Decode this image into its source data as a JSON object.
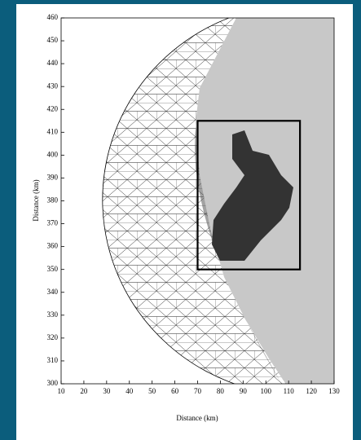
{
  "chart_data": {
    "type": "mesh",
    "xlabel": "Distance (km)",
    "ylabel": "Distance (km)",
    "xlim": [
      10,
      130
    ],
    "ylim": [
      300,
      460
    ],
    "xticks": [
      10,
      20,
      30,
      40,
      50,
      60,
      70,
      80,
      90,
      100,
      110,
      120,
      130
    ],
    "yticks": [
      300,
      310,
      320,
      330,
      340,
      350,
      360,
      370,
      380,
      390,
      400,
      410,
      420,
      430,
      440,
      450,
      460
    ],
    "box": {
      "x": [
        70,
        115
      ],
      "y": [
        350,
        415
      ]
    }
  }
}
